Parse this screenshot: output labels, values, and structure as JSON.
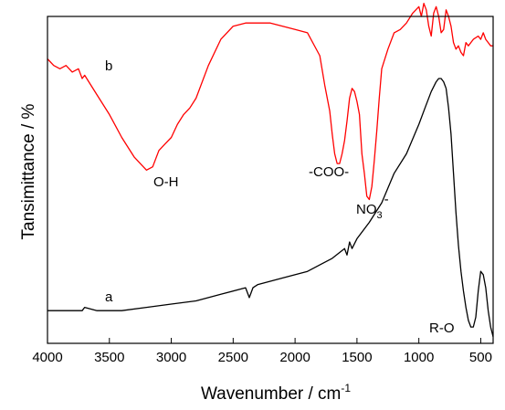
{
  "chart_data": {
    "type": "line",
    "xlabel": "Wavenumber / cm",
    "xlabel_sup": "-1",
    "ylabel": "Tansimittance / %",
    "xlim": [
      4000,
      400
    ],
    "x_reversed": true,
    "xticks": [
      4000,
      3500,
      3000,
      2500,
      2000,
      1500,
      1000,
      500
    ],
    "ylim": [
      0,
      100
    ],
    "y_ticks_shown": false,
    "grid": false,
    "legend": "none",
    "series": [
      {
        "name": "a",
        "color": "#000000",
        "x": [
          4000,
          3800,
          3720,
          3700,
          3600,
          3400,
          3200,
          3000,
          2800,
          2600,
          2400,
          2370,
          2340,
          2300,
          2100,
          1900,
          1800,
          1700,
          1600,
          1580,
          1560,
          1540,
          1500,
          1400,
          1300,
          1200,
          1100,
          1000,
          950,
          900,
          860,
          840,
          820,
          800,
          780,
          760,
          740,
          720,
          700,
          680,
          660,
          640,
          620,
          600,
          580,
          560,
          540,
          520,
          500,
          480,
          460,
          440,
          420,
          400
        ],
        "y": [
          10,
          10,
          10,
          11,
          10,
          10,
          11,
          12,
          13,
          15,
          17,
          14,
          17,
          18,
          20,
          22,
          24,
          26,
          29,
          27,
          31,
          29,
          32,
          37,
          43,
          52,
          58,
          67,
          72,
          77,
          80,
          81,
          81,
          80,
          78,
          72,
          64,
          52,
          40,
          30,
          22,
          16,
          11,
          7,
          5,
          5,
          8,
          16,
          22,
          21,
          17,
          10,
          5,
          2
        ]
      },
      {
        "name": "b",
        "color": "#ff0000",
        "x": [
          4000,
          3950,
          3900,
          3850,
          3800,
          3750,
          3720,
          3700,
          3600,
          3500,
          3400,
          3300,
          3200,
          3150,
          3100,
          3050,
          3000,
          2950,
          2900,
          2850,
          2800,
          2700,
          2600,
          2500,
          2400,
          2300,
          2200,
          2100,
          2000,
          1900,
          1800,
          1760,
          1720,
          1700,
          1680,
          1660,
          1640,
          1620,
          1600,
          1580,
          1560,
          1540,
          1520,
          1500,
          1480,
          1460,
          1440,
          1420,
          1400,
          1380,
          1360,
          1340,
          1320,
          1300,
          1250,
          1200,
          1150,
          1100,
          1050,
          1000,
          980,
          960,
          940,
          920,
          900,
          880,
          860,
          840,
          820,
          800,
          780,
          760,
          740,
          720,
          700,
          680,
          660,
          640,
          620,
          600,
          560,
          520,
          500,
          480,
          460,
          440,
          420,
          400
        ],
        "y": [
          87,
          85,
          84,
          85,
          83,
          84,
          81,
          82,
          76,
          70,
          63,
          57,
          53,
          54,
          59,
          61,
          63,
          67,
          70,
          72,
          75,
          85,
          93,
          97,
          98,
          98,
          98,
          97,
          96,
          95,
          88,
          79,
          71,
          64,
          58,
          55,
          55,
          58,
          62,
          68,
          75,
          78,
          77,
          74,
          70,
          58,
          52,
          45,
          44,
          48,
          56,
          65,
          75,
          84,
          90,
          95,
          96,
          98,
          101,
          103,
          100,
          104,
          102,
          97,
          94,
          101,
          103,
          100,
          95,
          96,
          102,
          100,
          97,
          92,
          90,
          91,
          89,
          88,
          92,
          91,
          93,
          94,
          93,
          95,
          93,
          92,
          91,
          91
        ]
      }
    ]
  },
  "annotations": {
    "label_a": "a",
    "label_b": "b",
    "oh": "O-H",
    "coo": "-COO-",
    "no3_main": "NO",
    "no3_sub": "3",
    "no3_sup": "-",
    "ro": "R-O"
  }
}
